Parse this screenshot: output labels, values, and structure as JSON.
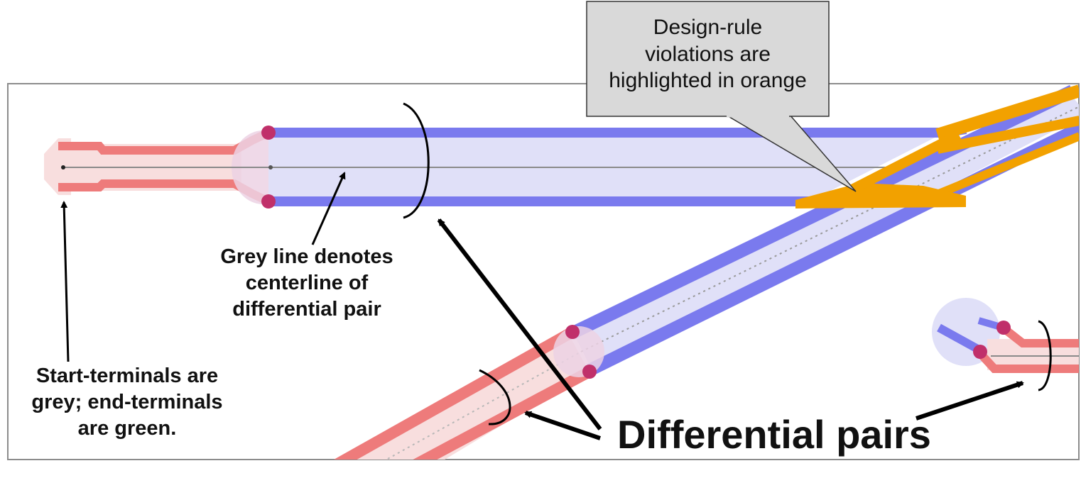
{
  "colors": {
    "trace_blue": "#7a7aee",
    "trace_blue_fill": "#e0e0f8",
    "trace_red": "#ee7b7b",
    "trace_red_fill": "#f8dede",
    "violation_orange": "#f2a100",
    "via": "#c0306a",
    "centerline_grey": "#8a8a8a",
    "callout_fill": "#d9d9d9"
  },
  "annotations": {
    "callout": {
      "line1": "Design-rule",
      "line2": "violations are",
      "line3": "highlighted in orange"
    },
    "centerline": {
      "line1": "Grey line denotes",
      "line2": "centerline of",
      "line3": "differential pair"
    },
    "terminals": {
      "line1": "Start-terminals are",
      "line2": "grey; end-terminals",
      "line3": "are green."
    },
    "pairs": "Differential pairs"
  }
}
